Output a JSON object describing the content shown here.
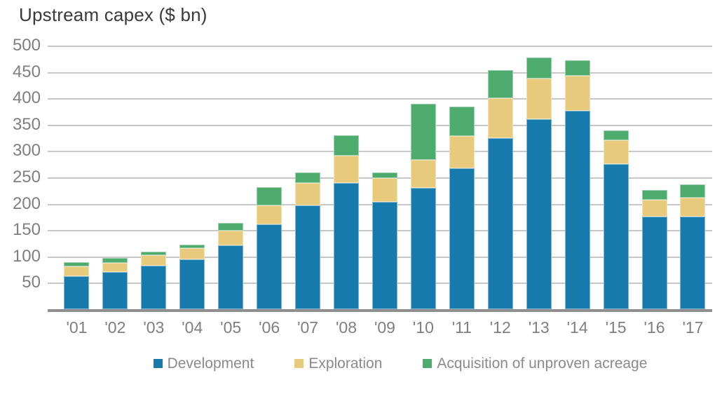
{
  "title": "Upstream capex ($ bn)",
  "colors": {
    "development": "#167aad",
    "exploration": "#e8ca7d",
    "acquisition": "#4dab6d",
    "gridline": "#c7c7c7",
    "axis_line": "#8f8f8f",
    "tick_label": "#7f7f7f",
    "title_text": "#3a3a3a",
    "legend_text": "#8a8a8a"
  },
  "chart_data": {
    "type": "bar",
    "stacked": true,
    "title": "Upstream capex ($ bn)",
    "categories": [
      "'01",
      "'02",
      "'03",
      "'04",
      "'05",
      "'06",
      "'07",
      "'08",
      "'09",
      "'10",
      "'11",
      "'12",
      "'13",
      "'14",
      "'15",
      "'16",
      "'17"
    ],
    "series": [
      {
        "name": "Development",
        "key": "development",
        "color": "#167aad",
        "values": [
          62,
          70,
          83,
          95,
          121,
          161,
          197,
          240,
          203,
          230,
          267,
          325,
          360,
          376,
          275,
          175,
          175
        ]
      },
      {
        "name": "Exploration",
        "key": "exploration",
        "color": "#e8ca7d",
        "values": [
          19,
          18,
          20,
          21,
          28,
          36,
          43,
          51,
          46,
          53,
          62,
          75,
          77,
          67,
          46,
          33,
          36
        ]
      },
      {
        "name": "Acquisition of unproven acreage",
        "key": "acquisition",
        "color": "#4dab6d",
        "values": [
          8,
          9,
          6,
          6,
          15,
          34,
          20,
          39,
          11,
          106,
          56,
          53,
          41,
          29,
          18,
          18,
          26
        ]
      }
    ],
    "totals": [
      89,
      97,
      109,
      122,
      164,
      231,
      260,
      330,
      260,
      389,
      385,
      453,
      478,
      472,
      339,
      226,
      237
    ],
    "ylabel": "",
    "xlabel": "",
    "ylim": [
      0,
      500
    ],
    "y_tick_step": 50,
    "y_ticks": [
      500,
      450,
      400,
      350,
      300,
      250,
      200,
      150,
      100,
      50
    ],
    "grid": true,
    "legend_position": "bottom"
  }
}
